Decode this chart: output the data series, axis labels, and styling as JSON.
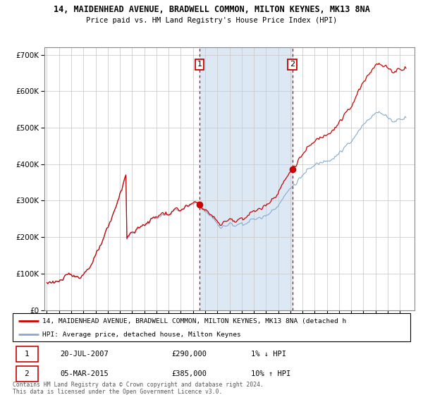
{
  "title": "14, MAIDENHEAD AVENUE, BRADWELL COMMON, MILTON KEYNES, MK13 8NA",
  "subtitle": "Price paid vs. HM Land Registry's House Price Index (HPI)",
  "legend_property": "14, MAIDENHEAD AVENUE, BRADWELL COMMON, MILTON KEYNES, MK13 8NA (detached h",
  "legend_hpi": "HPI: Average price, detached house, Milton Keynes",
  "annotation1_date": "20-JUL-2007",
  "annotation1_price": "£290,000",
  "annotation1_pct": "1% ↓ HPI",
  "annotation2_date": "05-MAR-2015",
  "annotation2_price": "£385,000",
  "annotation2_pct": "10% ↑ HPI",
  "footer": "Contains HM Land Registry data © Crown copyright and database right 2024.\nThis data is licensed under the Open Government Licence v3.0.",
  "property_color": "#cc0000",
  "hpi_color": "#88aacc",
  "shaded_region_color": "#dce9f5",
  "vline_color": "#cc0000",
  "annotation_box_color": "#cc0000",
  "grid_color": "#cccccc",
  "ylim": [
    0,
    720000
  ],
  "sale1_year": 2007.55,
  "sale1_value": 290000,
  "sale2_year": 2015.17,
  "sale2_value": 385000,
  "xmin": 1995.0,
  "xmax": 2025.0
}
